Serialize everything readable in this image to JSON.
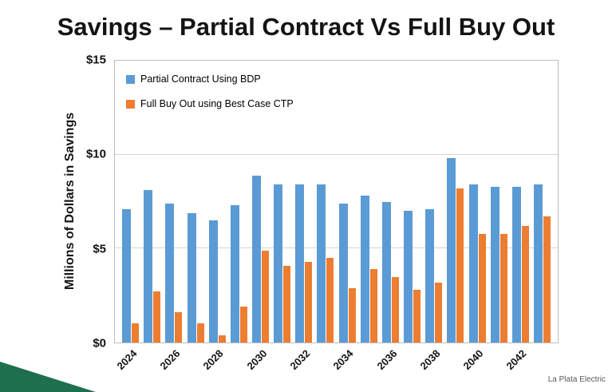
{
  "slide": {
    "title": "Savings – Partial Contract Vs Full Buy Out",
    "footer": "La Plata Electric"
  },
  "colors": {
    "bar_blue": "#5B9BD5",
    "bar_orange": "#ED7D31",
    "corner_green": "#1E6F4E"
  },
  "chart_data": {
    "type": "bar",
    "title": "Savings – Partial Contract Vs Full Buy Out",
    "xlabel": "",
    "ylabel": "Millions of Dollars in Savings",
    "ylim": [
      0,
      15
    ],
    "grid": true,
    "gridline_values": [
      5,
      10
    ],
    "legend_position": "top-left-inside",
    "y_ticks": [
      {
        "value": 0,
        "label": "$0"
      },
      {
        "value": 5,
        "label": "$5"
      },
      {
        "value": 10,
        "label": "$10"
      },
      {
        "value": 15,
        "label": "$15"
      }
    ],
    "x_tick_step": 2,
    "categories": [
      "2024",
      "2025",
      "2026",
      "2027",
      "2028",
      "2029",
      "2030",
      "2031",
      "2032",
      "2033",
      "2034",
      "2035",
      "2036",
      "2037",
      "2038",
      "2039",
      "2040",
      "2041",
      "2042",
      "2043"
    ],
    "series": [
      {
        "name": "Partial Contract Using BDP",
        "color": "#5B9BD5",
        "values": [
          7.1,
          8.1,
          7.4,
          6.9,
          6.5,
          7.3,
          8.9,
          8.4,
          8.4,
          8.4,
          7.4,
          7.8,
          7.5,
          7.0,
          7.1,
          9.8,
          8.4,
          8.3,
          8.3,
          8.4
        ]
      },
      {
        "name": "Full Buy Out using Best Case CTP",
        "color": "#ED7D31",
        "values": [
          1.0,
          2.7,
          1.6,
          1.0,
          0.4,
          1.9,
          4.9,
          4.1,
          4.3,
          4.5,
          2.9,
          3.9,
          3.5,
          2.8,
          3.2,
          8.2,
          5.8,
          5.8,
          6.2,
          6.7
        ]
      }
    ]
  }
}
